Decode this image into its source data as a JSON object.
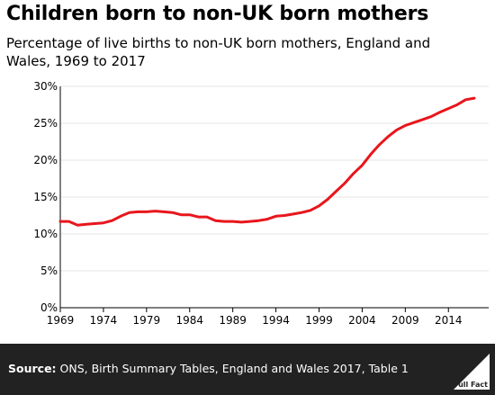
{
  "title": "Children born to non-UK born mothers",
  "subtitle": "Percentage of live births to non-UK born mothers, England and Wales, 1969 to 2017",
  "source_label": "Source:",
  "source_text": "ONS, Birth Summary Tables, England and Wales 2017, Table 1",
  "logo_text": "Full Fact",
  "colors": {
    "line": "#e8161c",
    "footer": "#222222",
    "grid": "#e6e6e6"
  },
  "chart_data": {
    "type": "line",
    "title": "",
    "xlabel": "",
    "ylabel": "",
    "xlim": [
      1969,
      2017
    ],
    "ylim": [
      0,
      30
    ],
    "yticks": [
      0,
      5,
      10,
      15,
      20,
      25,
      30
    ],
    "ytick_labels": [
      "0%",
      "5%",
      "10%",
      "15%",
      "20%",
      "25%",
      "30%"
    ],
    "xticks": [
      1969,
      1974,
      1979,
      1984,
      1989,
      1994,
      1999,
      2004,
      2009,
      2014
    ],
    "xtick_labels": [
      "1969",
      "1974",
      "1979",
      "1984",
      "1989",
      "1994",
      "1999",
      "2004",
      "2009",
      "2014"
    ],
    "grid": "horizontal",
    "series": [
      {
        "x": [
          1969,
          1970,
          1971,
          1972,
          1973,
          1974,
          1975,
          1976,
          1977,
          1978,
          1979,
          1980,
          1981,
          1982,
          1983,
          1984,
          1985,
          1986,
          1987,
          1988,
          1989,
          1990,
          1991,
          1992,
          1993,
          1994,
          1995,
          1996,
          1997,
          1998,
          1999,
          2000,
          2001,
          2002,
          2003,
          2004,
          2005,
          2006,
          2007,
          2008,
          2009,
          2010,
          2011,
          2012,
          2013,
          2014,
          2015,
          2016,
          2017
        ],
        "values": [
          11.7,
          11.7,
          11.2,
          11.3,
          11.4,
          11.5,
          11.8,
          12.4,
          12.9,
          13.0,
          13.0,
          13.1,
          13.0,
          12.9,
          12.6,
          12.6,
          12.3,
          12.3,
          11.8,
          11.7,
          11.7,
          11.6,
          11.7,
          11.8,
          12.0,
          12.4,
          12.5,
          12.7,
          12.9,
          13.2,
          13.8,
          14.7,
          15.8,
          16.9,
          18.2,
          19.3,
          20.8,
          22.1,
          23.2,
          24.1,
          24.7,
          25.1,
          25.5,
          25.9,
          26.5,
          27.0,
          27.5,
          28.2,
          28.4
        ]
      }
    ]
  }
}
